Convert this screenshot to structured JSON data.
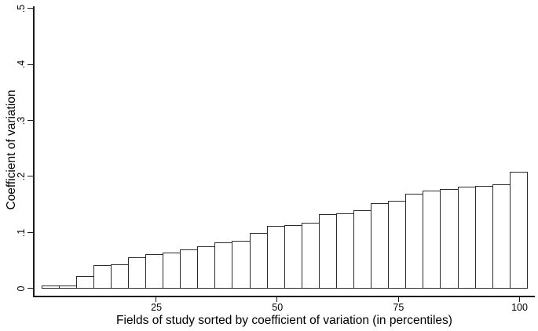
{
  "chart_data": {
    "type": "bar",
    "title": "",
    "xlabel": "Fields of study sorted by coefficient of variation (in percentiles)",
    "ylabel": "Coefficient of variation",
    "x_tick_labels": [
      "25",
      "50",
      "75",
      "100"
    ],
    "x_tick_percentiles": [
      25,
      50,
      75,
      100
    ],
    "y_tick_labels": [
      "0",
      ".1",
      ".2",
      ".3",
      ".4",
      ".5"
    ],
    "y_tick_values": [
      0,
      0.1,
      0.2,
      0.3,
      0.4,
      0.5
    ],
    "ylim": [
      0,
      0.5
    ],
    "xlim": [
      0,
      103
    ],
    "n_bars": 28,
    "values": [
      0.005,
      0.005,
      0.022,
      0.042,
      0.043,
      0.056,
      0.062,
      0.064,
      0.07,
      0.076,
      0.083,
      0.086,
      0.099,
      0.112,
      0.113,
      0.118,
      0.133,
      0.135,
      0.14,
      0.153,
      0.157,
      0.17,
      0.175,
      0.178,
      0.182,
      0.184,
      0.186,
      0.209
    ],
    "bar_fill": "#ffffff",
    "bar_border": "#2b2b2b",
    "axis_color": "#1a1a1a",
    "text_color": "#000000",
    "grid": false,
    "legend": false
  }
}
